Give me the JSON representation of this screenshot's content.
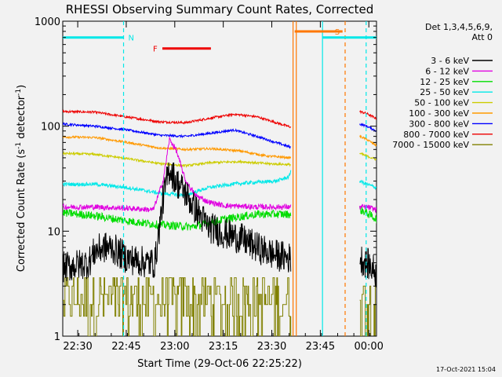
{
  "figure_title": "RHESSI Observing Summary Count Rates, Corrected",
  "timestamp": "17-Oct-2021 15:04",
  "chart_data": {
    "type": "line",
    "title": "RHESSI Observing Summary Count Rates, Corrected",
    "xlabel": "Start Time (29-Oct-06 22:25:22)",
    "ylabel": "Corrected Count Rate (s⁻¹ detector⁻¹)",
    "ylabel_parts": {
      "base": "Corrected Count Rate (s",
      "sup1": "-1",
      "mid": " detector",
      "sup2": "-1",
      "end": ")"
    },
    "x_units": "minutes since 22:25:22",
    "xlim": [
      0,
      97
    ],
    "ylim": [
      1,
      1000
    ],
    "yscale": "log",
    "y_ticks": [
      1,
      10,
      100,
      1000
    ],
    "y_tick_labels": [
      "1",
      "10",
      "100",
      "1000"
    ],
    "x_ticks": [
      4.63,
      19.63,
      34.63,
      49.63,
      64.63,
      79.63,
      94.63
    ],
    "x_tick_labels": [
      "22:30",
      "22:45",
      "23:00",
      "23:15",
      "23:30",
      "23:45",
      "00:00"
    ],
    "grid": false,
    "legend": {
      "header": [
        "Det 1,3,4,5,6,9,",
        "Att 0"
      ],
      "placement": "right"
    },
    "series": [
      {
        "name": "3 - 6 keV",
        "color": "#000000",
        "noise": 0.35,
        "points": [
          [
            0,
            4.5
          ],
          [
            8,
            5
          ],
          [
            10,
            6.5
          ],
          [
            13,
            7
          ],
          [
            15,
            7
          ],
          [
            20,
            5.5
          ],
          [
            26,
            5
          ],
          [
            28.5,
            5
          ],
          [
            31,
            20
          ],
          [
            33,
            40
          ],
          [
            35,
            30
          ],
          [
            38,
            23
          ],
          [
            40,
            18
          ],
          [
            45,
            11
          ],
          [
            50,
            9.5
          ],
          [
            55,
            8.5
          ],
          [
            60,
            7
          ],
          [
            65,
            6
          ],
          [
            70.5,
            5.5
          ]
        ],
        "points2": [
          [
            91.8,
            5.5
          ],
          [
            94,
            5
          ],
          [
            97,
            4
          ]
        ]
      },
      {
        "name": "6 - 12 keV",
        "color": "#e000e0",
        "noise": 0.06,
        "points": [
          [
            0,
            17
          ],
          [
            10,
            17
          ],
          [
            20,
            16.5
          ],
          [
            28,
            16
          ],
          [
            31,
            30
          ],
          [
            33,
            75
          ],
          [
            35,
            60
          ],
          [
            38,
            30
          ],
          [
            41,
            22
          ],
          [
            45,
            19
          ],
          [
            50,
            17.5
          ],
          [
            60,
            17
          ],
          [
            70.5,
            17
          ]
        ],
        "points2": [
          [
            91.8,
            17
          ],
          [
            94,
            17
          ],
          [
            97,
            16
          ]
        ]
      },
      {
        "name": "12 - 25 keV",
        "color": "#00dd00",
        "noise": 0.09,
        "points": [
          [
            0,
            15
          ],
          [
            10,
            14
          ],
          [
            20,
            12.5
          ],
          [
            30,
            11.5
          ],
          [
            40,
            11
          ],
          [
            50,
            13
          ],
          [
            60,
            14.5
          ],
          [
            70.5,
            14.5
          ]
        ],
        "points2": [
          [
            91.8,
            16
          ],
          [
            94,
            15
          ],
          [
            97,
            13
          ]
        ]
      },
      {
        "name": "25 - 50 keV",
        "color": "#00e8e8",
        "noise": 0.04,
        "points": [
          [
            0,
            28
          ],
          [
            10,
            28
          ],
          [
            20,
            26
          ],
          [
            30,
            23
          ],
          [
            38,
            22
          ],
          [
            45,
            26
          ],
          [
            52,
            28
          ],
          [
            58,
            29
          ],
          [
            66,
            30
          ],
          [
            70,
            33
          ],
          [
            70.5,
            38
          ]
        ],
        "points2": [
          [
            91.8,
            30
          ],
          [
            94,
            28
          ],
          [
            97,
            26
          ]
        ]
      },
      {
        "name": "50 - 100 keV",
        "color": "#cccc00",
        "noise": 0.025,
        "points": [
          [
            0,
            55
          ],
          [
            10,
            54
          ],
          [
            20,
            49
          ],
          [
            30,
            44
          ],
          [
            38,
            42
          ],
          [
            46,
            45
          ],
          [
            55,
            46
          ],
          [
            63,
            44
          ],
          [
            70.5,
            43
          ]
        ],
        "points2": [
          [
            91.8,
            55
          ],
          [
            94,
            52
          ],
          [
            97,
            48
          ]
        ]
      },
      {
        "name": "100 - 300 keV",
        "color": "#ff9900",
        "noise": 0.025,
        "points": [
          [
            0,
            79
          ],
          [
            10,
            78
          ],
          [
            20,
            70
          ],
          [
            30,
            62
          ],
          [
            38,
            60
          ],
          [
            46,
            61
          ],
          [
            55,
            58
          ],
          [
            63,
            52
          ],
          [
            70.5,
            50
          ]
        ],
        "points2": [
          [
            91.8,
            80
          ],
          [
            94,
            75
          ],
          [
            97,
            65
          ]
        ]
      },
      {
        "name": "300 - 800 keV",
        "color": "#0000ff",
        "noise": 0.025,
        "points": [
          [
            0,
            105
          ],
          [
            10,
            100
          ],
          [
            20,
            92
          ],
          [
            30,
            82
          ],
          [
            38,
            80
          ],
          [
            46,
            86
          ],
          [
            53,
            92
          ],
          [
            60,
            80
          ],
          [
            70.5,
            63
          ]
        ],
        "points2": [
          [
            91.8,
            105
          ],
          [
            94,
            100
          ],
          [
            97,
            90
          ]
        ]
      },
      {
        "name": "800 - 7000 keV",
        "color": "#ee0000",
        "noise": 0.025,
        "points": [
          [
            0,
            138
          ],
          [
            10,
            136
          ],
          [
            20,
            122
          ],
          [
            30,
            110
          ],
          [
            38,
            108
          ],
          [
            46,
            120
          ],
          [
            53,
            130
          ],
          [
            60,
            123
          ],
          [
            70.5,
            98
          ]
        ],
        "points2": [
          [
            91.8,
            138
          ],
          [
            94,
            132
          ],
          [
            97,
            118
          ]
        ]
      },
      {
        "name": "7000 - 15000 keV",
        "color": "#808000",
        "noise": 0,
        "points": [],
        "points2": []
      }
    ],
    "flag_bars": [
      {
        "label": "N",
        "color": "#00e8e8",
        "y": 700,
        "segments": [
          [
            0,
            18.8
          ],
          [
            80.3,
            97
          ]
        ]
      },
      {
        "label": "F",
        "color": "#ee0000",
        "y": 550,
        "segments": [
          [
            30.8,
            45.8
          ]
        ]
      },
      {
        "label": "S",
        "color": "#ff7700",
        "y": 800,
        "segments": [
          [
            71.7,
            86.5
          ]
        ]
      }
    ],
    "vertical_markers": [
      {
        "x": 18.8,
        "color": "#00e8e8",
        "style": "dashed"
      },
      {
        "x": 93.8,
        "color": "#00e8e8",
        "style": "dashed"
      },
      {
        "x": 71.2,
        "color": "#ff7700",
        "style": "solid"
      },
      {
        "x": 72.2,
        "color": "#ff7700",
        "style": "solid"
      },
      {
        "x": 80.3,
        "color": "#00e8e8",
        "style": "solid"
      },
      {
        "x": 87.3,
        "color": "#ff7700",
        "style": "dashed"
      }
    ]
  }
}
